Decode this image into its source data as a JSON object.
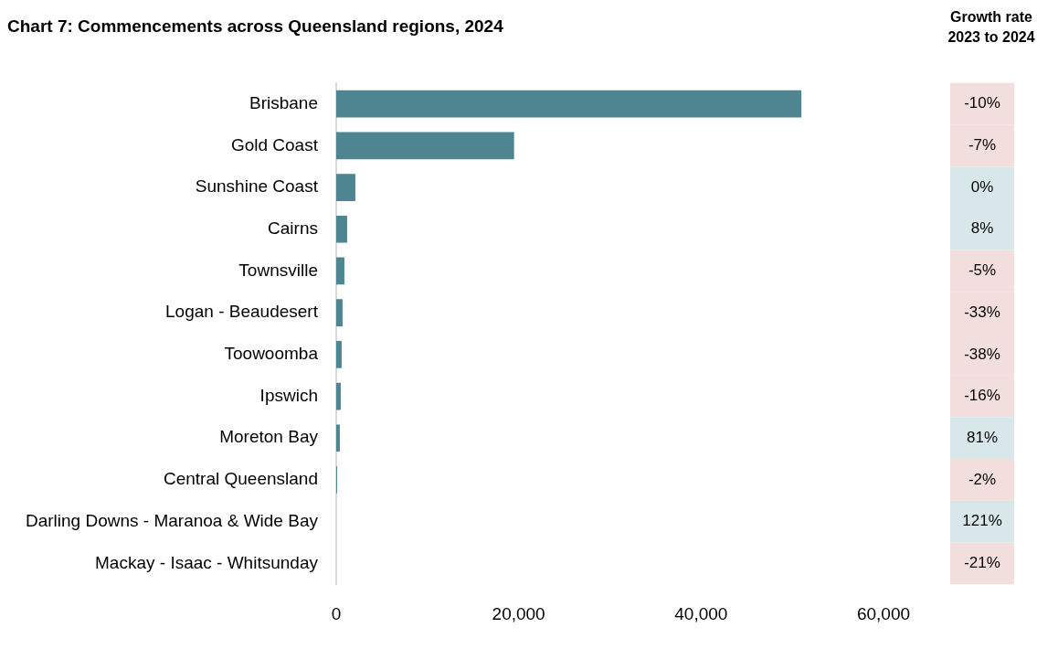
{
  "chart_data": {
    "type": "bar",
    "orientation": "horizontal",
    "title": "Chart 7: Commencements across Queensland regions, 2024",
    "categories": [
      "Brisbane",
      "Gold Coast",
      "Sunshine Coast",
      "Cairns",
      "Townsville",
      "Logan - Beaudesert",
      "Toowoomba",
      "Ipswich",
      "Moreton Bay",
      "Central Queensland",
      "Darling Downs - Maranoa & Wide Bay",
      "Mackay - Isaac - Whitsunday"
    ],
    "values": [
      51000,
      19500,
      2100,
      1200,
      900,
      700,
      600,
      500,
      400,
      100,
      0,
      0
    ],
    "color": "#4e8590",
    "xlim": [
      0,
      60000
    ],
    "xticks": [
      {
        "value": 0,
        "label": "0"
      },
      {
        "value": 20000,
        "label": "20,000"
      },
      {
        "value": 40000,
        "label": "40,000"
      },
      {
        "value": 60000,
        "label": "60,000"
      }
    ],
    "grid": false,
    "legend": false,
    "annotations": [
      "Growth rate 2023 to 2024",
      "-10%",
      "-7%",
      "0%",
      "8%",
      "-5%",
      "-33%",
      "-38%",
      "-16%",
      "81%",
      "-2%",
      "121%",
      "-21%"
    ]
  }
}
